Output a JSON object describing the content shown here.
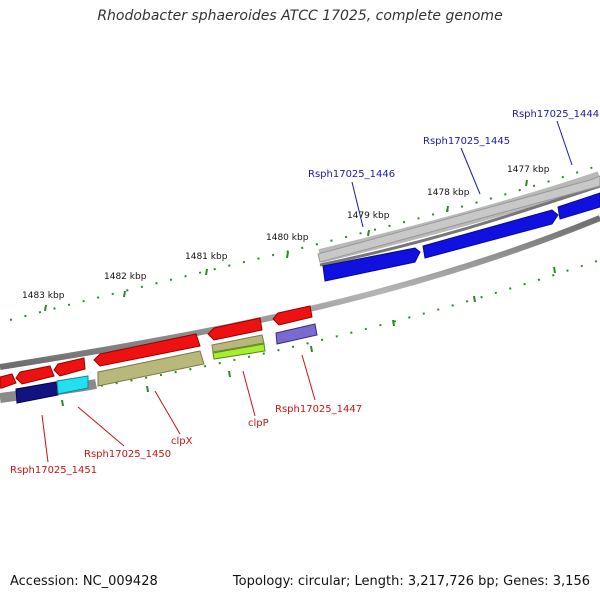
{
  "title": "Rhodobacter sphaeroides ATCC 17025, complete genome",
  "footer": {
    "accession": "Accession: NC_009428",
    "stats": "Topology: circular; Length: 3,217,726 bp; Genes: 3,156"
  },
  "scale": {
    "labels": [
      "1483 kbp",
      "1482 kbp",
      "1481 kbp",
      "1480 kbp",
      "1479 kbp",
      "1478 kbp",
      "1477 kbp"
    ]
  },
  "genes": {
    "forward_labeled": [
      "Rsph17025_1446",
      "Rsph17025_1445",
      "Rsph17025_1444"
    ],
    "reverse_labeled": [
      "Rsph17025_1451",
      "Rsph17025_1450",
      "clpX",
      "clpP",
      "Rsph17025_1447"
    ]
  },
  "colors": {
    "forward_label": "#1a1aa6",
    "reverse_label": "#c81414",
    "tick": "#2a8a2a",
    "backbone": "#8a8a8a",
    "gene_red": "#ee1111",
    "gene_blue": "#1010e0",
    "gene_navy": "#121280",
    "gene_cyan": "#22e0f0",
    "gene_olive": "#b8b87a",
    "gene_lime": "#a6ee30",
    "gene_purple": "#7a6ad0",
    "gene_grey": "#c8c8c8"
  }
}
